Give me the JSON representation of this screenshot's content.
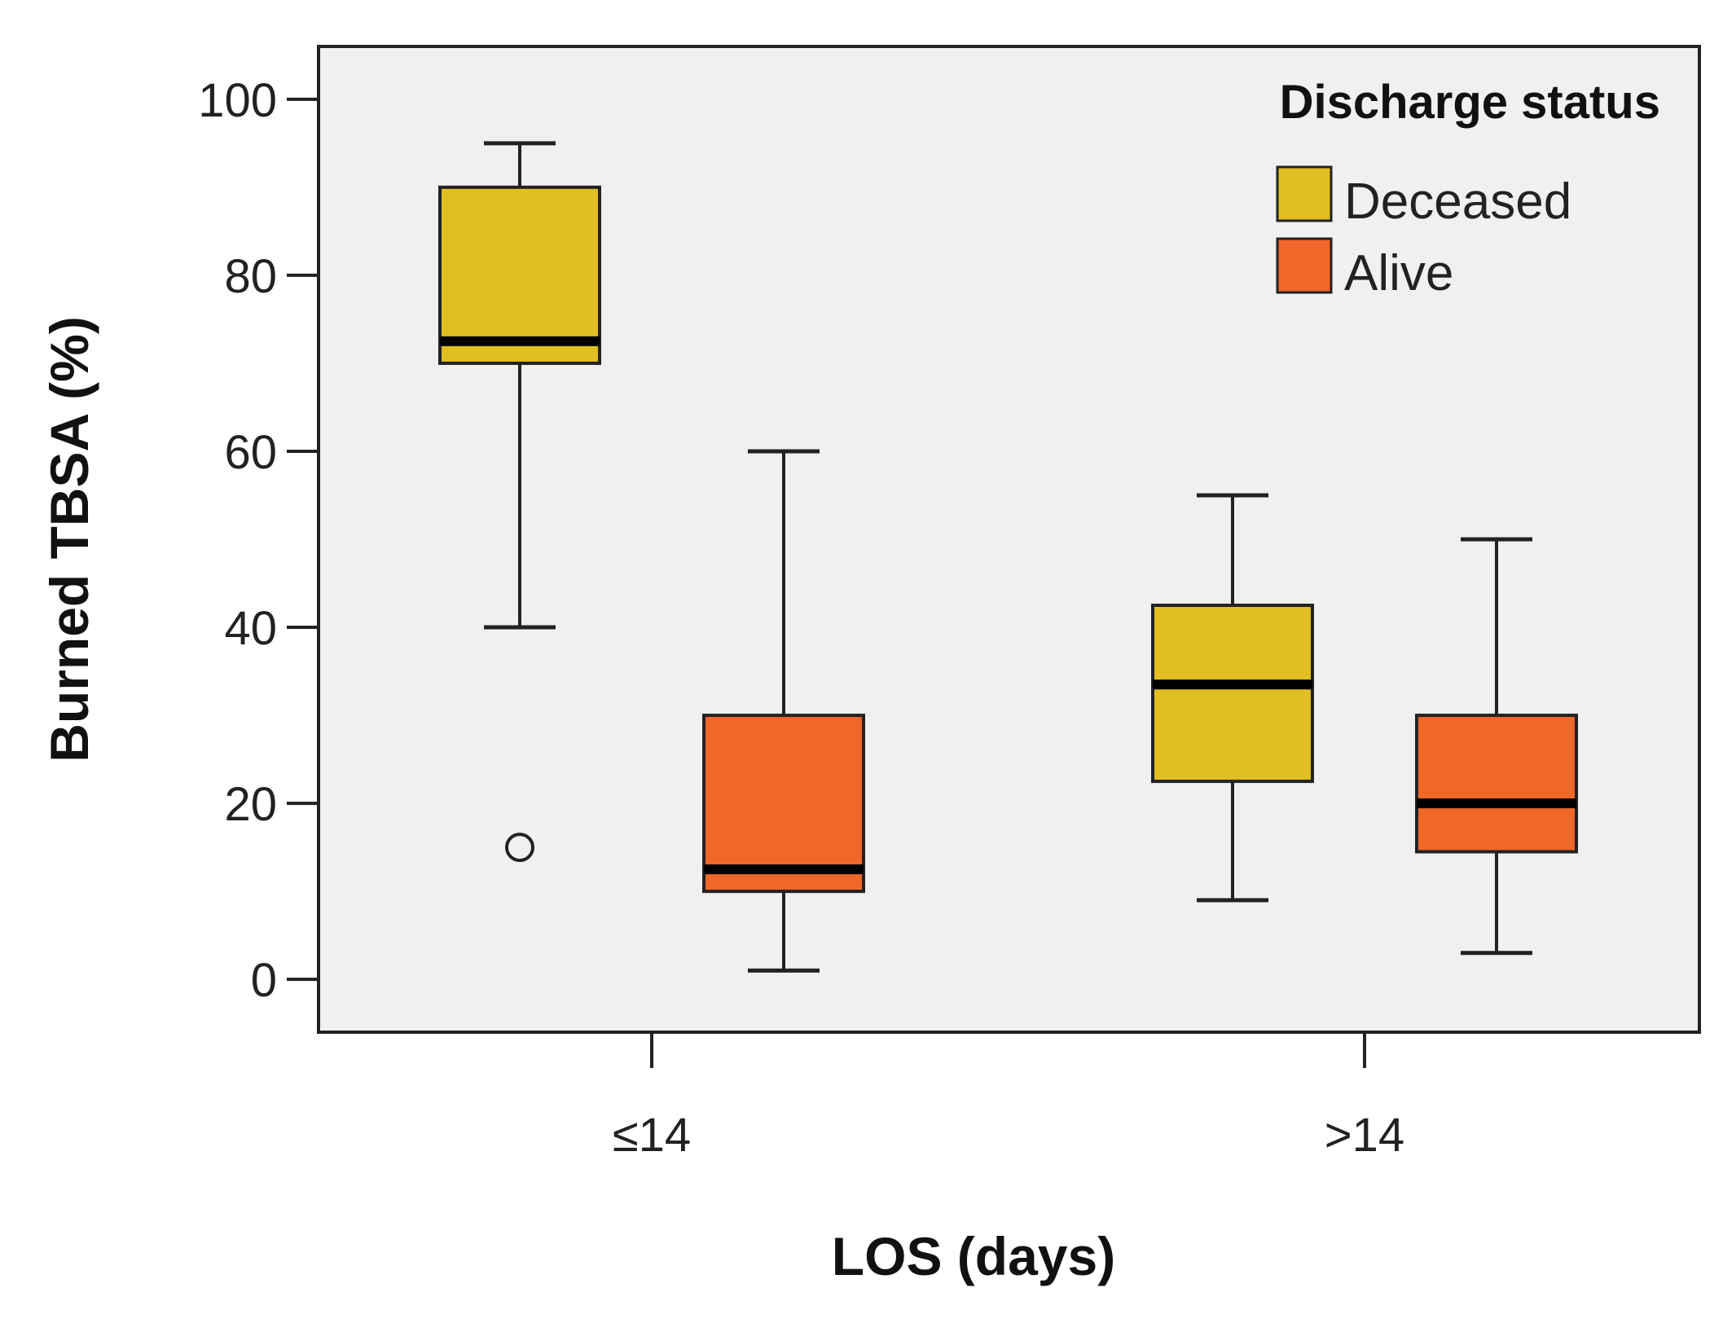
{
  "chart_data": {
    "type": "boxplot",
    "title": "",
    "xlabel": "LOS (days)",
    "ylabel": "Burned TBSA (%)",
    "ylim": [
      -6,
      106
    ],
    "yticks": [
      0,
      20,
      40,
      60,
      80,
      100
    ],
    "categories": [
      "≤14",
      ">14"
    ],
    "legend": {
      "title": "Discharge status",
      "position": "top-right"
    },
    "series": [
      {
        "name": "Deceased",
        "color": "#E1BE22",
        "boxes": [
          {
            "category": "≤14",
            "min": 40,
            "q1": 70,
            "median": 72.5,
            "q3": 90,
            "max": 95,
            "outliers": [
              15
            ]
          },
          {
            "category": ">14",
            "min": 9,
            "q1": 22.5,
            "median": 33.5,
            "q3": 42.5,
            "max": 55,
            "outliers": []
          }
        ]
      },
      {
        "name": "Alive",
        "color": "#F0672A",
        "boxes": [
          {
            "category": "≤14",
            "min": 1,
            "q1": 10,
            "median": 12.5,
            "q3": 30,
            "max": 60,
            "outliers": []
          },
          {
            "category": ">14",
            "min": 3,
            "q1": 14.5,
            "median": 20,
            "q3": 30,
            "max": 50,
            "outliers": []
          }
        ]
      }
    ],
    "colors": {
      "plot_background": "#F0F0F0",
      "axis": "#222222"
    }
  }
}
